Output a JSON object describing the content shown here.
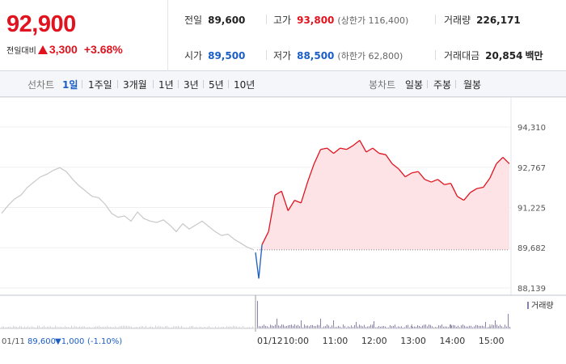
{
  "quote": {
    "price": "92,900",
    "change_label": "전일대비",
    "change_amount": "3,300",
    "change_pct": "+3.68%"
  },
  "stats": {
    "prev_close": {
      "label": "전일",
      "value": "89,600"
    },
    "high": {
      "label": "고가",
      "value": "93,800",
      "sub": "(상한가 116,400)"
    },
    "volume": {
      "label": "거래량",
      "value": "226,171"
    },
    "open": {
      "label": "시가",
      "value": "89,500"
    },
    "low": {
      "label": "저가",
      "value": "88,500",
      "sub": "(하한가 62,800)"
    },
    "turnover": {
      "label": "거래대금",
      "value": "20,854",
      "unit": "백만"
    }
  },
  "line_tabs": {
    "label": "선차트",
    "items": [
      "1일",
      "1주일",
      "3개월",
      "1년",
      "3년",
      "5년",
      "10년"
    ],
    "active": "1일"
  },
  "candle_tabs": {
    "label": "봉차트",
    "items": [
      "일봉",
      "주봉",
      "월봉"
    ]
  },
  "colors": {
    "up": "#e0131e",
    "down": "#1b5ec6",
    "prev_day_line": "#c8c8c8",
    "fill": "#fde3e6",
    "volume_bar": "#8a7fb0"
  },
  "chart_data": {
    "type": "line",
    "y_ticks": [
      "94,310",
      "92,767",
      "91,225",
      "89,682",
      "88,139"
    ],
    "ylim": [
      88139,
      94310
    ],
    "baseline": 89600,
    "x_ticks": [
      "01/12",
      "10:00",
      "11:00",
      "12:00",
      "13:00",
      "14:00",
      "15:00"
    ],
    "volume_legend": "거래량",
    "prev_day_info": {
      "date": "01/11",
      "close": "89,600",
      "change": "▼1,000",
      "change_pct": "(-1.10%)"
    },
    "series": [
      {
        "name": "01/11",
        "x": [
          "09:00",
          "09:10",
          "09:20",
          "09:30",
          "09:40",
          "09:50",
          "10:00",
          "10:10",
          "10:20",
          "10:30",
          "10:40",
          "10:50",
          "11:00",
          "11:10",
          "11:20",
          "11:30",
          "11:40",
          "11:50",
          "12:00",
          "12:10",
          "12:20",
          "12:30",
          "12:40",
          "12:50",
          "13:00",
          "13:10",
          "13:20",
          "13:30",
          "13:40",
          "13:50",
          "14:00",
          "14:10",
          "14:20",
          "14:30",
          "14:40",
          "14:50",
          "15:00",
          "15:10",
          "15:20",
          "15:30"
        ],
        "values": [
          91000,
          91300,
          91550,
          91700,
          92000,
          92200,
          92400,
          92500,
          92650,
          92750,
          92600,
          92300,
          92050,
          91850,
          91650,
          91600,
          91350,
          91000,
          90850,
          90900,
          90700,
          91050,
          90800,
          90700,
          90650,
          90750,
          90550,
          90300,
          90600,
          90400,
          90550,
          90700,
          90500,
          90300,
          90150,
          90200,
          90000,
          89850,
          89700,
          89600
        ]
      },
      {
        "name": "01/12",
        "x": [
          "09:00",
          "09:05",
          "09:10",
          "09:20",
          "09:30",
          "09:40",
          "09:50",
          "10:00",
          "10:10",
          "10:20",
          "10:30",
          "10:40",
          "10:50",
          "11:00",
          "11:10",
          "11:20",
          "11:30",
          "11:40",
          "11:50",
          "12:00",
          "12:10",
          "12:20",
          "12:30",
          "12:40",
          "12:50",
          "13:00",
          "13:10",
          "13:20",
          "13:30",
          "13:40",
          "13:50",
          "14:00",
          "14:10",
          "14:20",
          "14:30",
          "14:40",
          "14:50",
          "15:00",
          "15:10",
          "15:20",
          "15:30"
        ],
        "values": [
          89500,
          88500,
          89800,
          90300,
          91700,
          91850,
          91100,
          91500,
          91400,
          92200,
          92900,
          93450,
          93500,
          93300,
          93500,
          93450,
          93600,
          93800,
          93350,
          93500,
          93300,
          93250,
          92900,
          92700,
          92400,
          92550,
          92600,
          92300,
          92200,
          92300,
          92100,
          92150,
          91650,
          91500,
          91800,
          91950,
          92000,
          92350,
          92900,
          93150,
          92900
        ]
      }
    ]
  }
}
